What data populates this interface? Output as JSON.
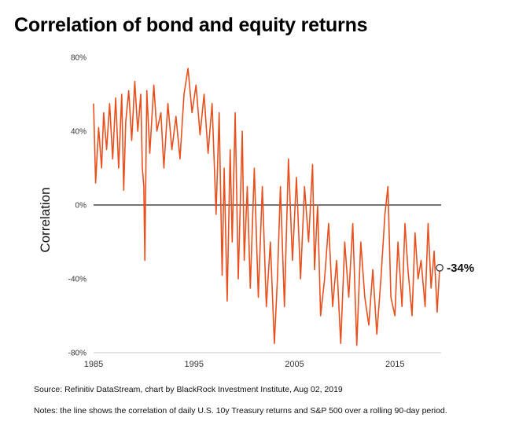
{
  "title": "Correlation of bond and equity returns",
  "source": "Source: Refinitiv DataStream, chart by BlackRock Investment Institute, Aug 02, 2019",
  "notes": "Notes: the line shows the correlation of daily U.S. 10y Treasury returns and S&P 500 over a rolling 90-day period.",
  "chart_data": {
    "type": "line",
    "title": "Correlation of bond and equity returns",
    "xlabel": "",
    "ylabel": "Correlation",
    "xlim": [
      1985,
      2019.6
    ],
    "ylim": [
      -80,
      80
    ],
    "x_ticks": [
      1985,
      1995,
      2005,
      2015
    ],
    "x_tick_labels": [
      "1985",
      "1995",
      "2005",
      "2015"
    ],
    "y_ticks": [
      80,
      40,
      0,
      -40,
      -80
    ],
    "y_tick_labels": [
      "80%",
      "40%",
      "0%",
      "-40%",
      "-80%"
    ],
    "grid": false,
    "zero_line": true,
    "line_color": "#e8501e",
    "end_label": "-34%",
    "end_value": -34,
    "series": [
      {
        "x": [
          1985.0,
          1985.2,
          1985.5,
          1985.8,
          1986.0,
          1986.3,
          1986.6,
          1986.9,
          1987.2,
          1987.5,
          1987.8,
          1988.0,
          1988.2,
          1988.5,
          1988.8,
          1989.1,
          1989.4,
          1989.7,
          1989.85,
          1990.0,
          1990.1,
          1990.3,
          1990.6,
          1991.0,
          1991.3,
          1991.7,
          1992.0,
          1992.4,
          1992.8,
          1993.2,
          1993.6,
          1994.0,
          1994.4,
          1994.8,
          1995.2,
          1995.6,
          1996.0,
          1996.4,
          1996.8,
          1997.2,
          1997.5,
          1997.8,
          1998.0,
          1998.3,
          1998.6,
          1998.8,
          1999.1,
          1999.4,
          1999.8,
          2000.0,
          2000.3,
          2000.6,
          2001.0,
          2001.4,
          2001.8,
          2002.2,
          2002.6,
          2003.0,
          2003.3,
          2003.6,
          2004.0,
          2004.4,
          2004.8,
          2005.2,
          2005.6,
          2006.0,
          2006.4,
          2006.8,
          2007.0,
          2007.3,
          2007.6,
          2008.0,
          2008.4,
          2008.8,
          2009.2,
          2009.6,
          2010.0,
          2010.4,
          2010.8,
          2011.2,
          2011.6,
          2012.0,
          2012.4,
          2012.8,
          2013.2,
          2013.6,
          2014.0,
          2014.3,
          2014.6,
          2015.0,
          2015.3,
          2015.7,
          2016.0,
          2016.3,
          2016.7,
          2017.0,
          2017.3,
          2017.6,
          2018.0,
          2018.3,
          2018.6,
          2018.9,
          2019.2,
          2019.45
        ],
        "y": [
          55,
          12,
          42,
          20,
          50,
          30,
          55,
          25,
          58,
          20,
          60,
          8,
          45,
          62,
          35,
          67,
          40,
          60,
          20,
          10,
          -30,
          62,
          28,
          65,
          40,
          50,
          20,
          55,
          30,
          48,
          25,
          60,
          74,
          50,
          65,
          38,
          60,
          28,
          55,
          -5,
          50,
          -38,
          20,
          -52,
          30,
          -20,
          50,
          -40,
          40,
          -30,
          10,
          -45,
          20,
          -50,
          10,
          -55,
          -20,
          -75,
          -40,
          10,
          -55,
          25,
          -30,
          15,
          -40,
          10,
          -20,
          22,
          -35,
          0,
          -60,
          -40,
          -10,
          -55,
          -30,
          -75,
          -20,
          -50,
          -10,
          -76,
          -20,
          -50,
          -65,
          -35,
          -70,
          -40,
          -5,
          10,
          -50,
          -60,
          -20,
          -55,
          -10,
          -35,
          -60,
          -15,
          -40,
          -30,
          -55,
          -10,
          -45,
          -25,
          -58,
          -34
        ]
      }
    ]
  }
}
